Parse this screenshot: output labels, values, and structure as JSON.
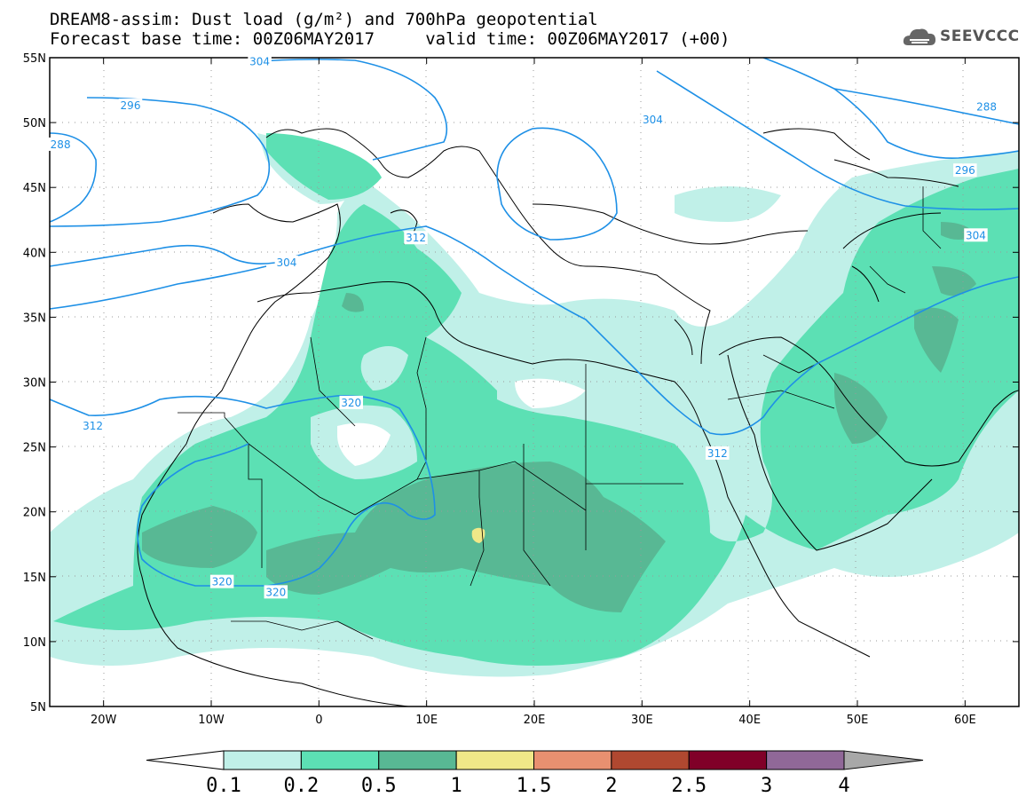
{
  "header": {
    "line1": "DREAM8-assim: Dust load (g/m²) and 700hPa geopotential",
    "line2": "Forecast base time: 00Z06MAY2017     valid time: 00Z06MAY2017 (+00)"
  },
  "logo": {
    "text": "SEEVCCC",
    "icon": "cloud-icon"
  },
  "map": {
    "lon_range": [
      -25,
      65
    ],
    "lat_range": [
      5,
      55
    ],
    "lon_ticks": [
      {
        "value": -20,
        "label": "20W"
      },
      {
        "value": -10,
        "label": "10W"
      },
      {
        "value": 0,
        "label": "0"
      },
      {
        "value": 10,
        "label": "10E"
      },
      {
        "value": 20,
        "label": "20E"
      },
      {
        "value": 30,
        "label": "30E"
      },
      {
        "value": 40,
        "label": "40E"
      },
      {
        "value": 50,
        "label": "50E"
      },
      {
        "value": 60,
        "label": "60E"
      }
    ],
    "lat_ticks": [
      {
        "value": 55,
        "label": "55N"
      },
      {
        "value": 50,
        "label": "50N"
      },
      {
        "value": 45,
        "label": "45N"
      },
      {
        "value": 40,
        "label": "40N"
      },
      {
        "value": 35,
        "label": "35N"
      },
      {
        "value": 30,
        "label": "30N"
      },
      {
        "value": 25,
        "label": "25N"
      },
      {
        "value": 20,
        "label": "20N"
      },
      {
        "value": 15,
        "label": "15N"
      },
      {
        "value": 10,
        "label": "10N"
      },
      {
        "value": 5,
        "label": "5N"
      }
    ],
    "contour_labels": [
      {
        "text": "304",
        "lon": -5.5,
        "lat": 54.7
      },
      {
        "text": "296",
        "lon": -17.5,
        "lat": 51.3
      },
      {
        "text": "288",
        "lon": -24,
        "lat": 48.3
      },
      {
        "text": "304",
        "lon": 31,
        "lat": 50.2
      },
      {
        "text": "288",
        "lon": 62,
        "lat": 51.2
      },
      {
        "text": "296",
        "lon": 60,
        "lat": 46.3
      },
      {
        "text": "304",
        "lon": 61,
        "lat": 41.3
      },
      {
        "text": "312",
        "lon": 9,
        "lat": 41.1
      },
      {
        "text": "304",
        "lon": -3,
        "lat": 39.2
      },
      {
        "text": "320",
        "lon": 3,
        "lat": 28.4
      },
      {
        "text": "312",
        "lon": -21,
        "lat": 26.6
      },
      {
        "text": "312",
        "lon": 37,
        "lat": 24.5
      },
      {
        "text": "320",
        "lon": -9,
        "lat": 14.6
      },
      {
        "text": "320",
        "lon": -4,
        "lat": 13.8
      }
    ]
  },
  "colorbar": {
    "levels": [
      "0.1",
      "0.2",
      "0.5",
      "1",
      "1.5",
      "2",
      "2.5",
      "3",
      "4"
    ],
    "colors": [
      "#ffffff",
      "#c0f0e8",
      "#5ce0b4",
      "#58b894",
      "#f0e888",
      "#e89070",
      "#b04830",
      "#800028",
      "#906898",
      "#a8a8a8"
    ]
  },
  "palette": {
    "dust_low": "#c0f0e8",
    "dust_mid": "#5ce0b4",
    "dust_high": "#58b894",
    "dust_1": "#f0e888",
    "contour": "#1e90e6"
  }
}
